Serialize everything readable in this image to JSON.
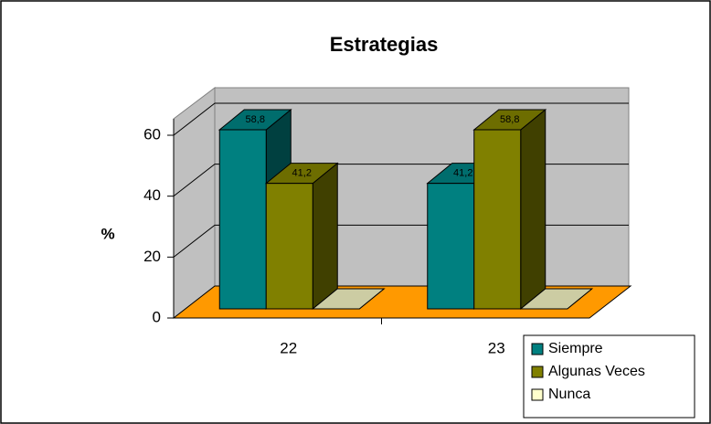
{
  "chart_data": {
    "type": "bar3d",
    "title": "Estrategias",
    "y_label": "%",
    "categories": [
      "22",
      "23"
    ],
    "series": [
      {
        "name": "Siempre",
        "color": "#008080",
        "values": [
          58.8,
          41.2
        ],
        "value_labels": [
          "58,8",
          "41,2"
        ]
      },
      {
        "name": "Algunas Veces",
        "color": "#808000",
        "values": [
          41.2,
          58.8
        ],
        "value_labels": [
          "41,2",
          "58,8"
        ]
      },
      {
        "name": "Nunca",
        "color": "#ffffcc",
        "values": [
          0,
          0
        ]
      }
    ],
    "ylim": [
      0,
      60
    ],
    "yticks": [
      0,
      20,
      40,
      60
    ],
    "grid": true
  }
}
